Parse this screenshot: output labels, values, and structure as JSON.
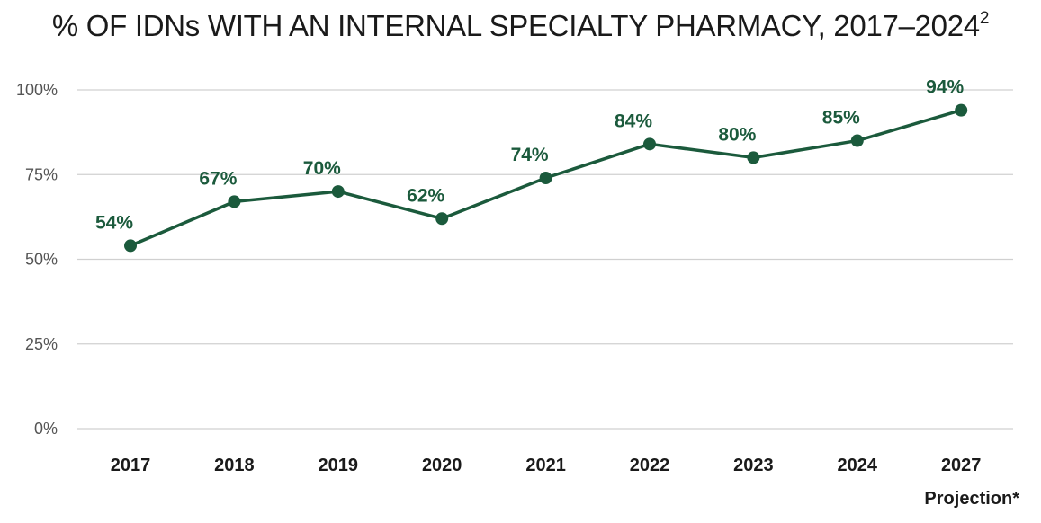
{
  "chart_data": {
    "type": "line",
    "title": "% OF IDNs WITH AN INTERNAL SPECIALTY PHARMACY, 2017–2024",
    "title_superscript": "2",
    "categories": [
      "2017",
      "2018",
      "2019",
      "2020",
      "2021",
      "2022",
      "2023",
      "2024",
      "2027"
    ],
    "series": [
      {
        "values": [
          54,
          67,
          70,
          62,
          74,
          84,
          80,
          85,
          94
        ],
        "labels": [
          "54%",
          "67%",
          "70%",
          "62%",
          "74%",
          "84%",
          "80%",
          "85%",
          "94%"
        ]
      }
    ],
    "y_ticks": [
      0,
      25,
      50,
      75,
      100
    ],
    "y_tick_labels": [
      "0%",
      "25%",
      "50%",
      "75%",
      "100%"
    ],
    "ylim": [
      0,
      100
    ],
    "grid": true,
    "annotation": "Projection*",
    "colors": {
      "line": "#1b5a3c",
      "marker": "#1b5a3c",
      "label": "#1b5a3c",
      "grid": "#d0d0d0"
    }
  }
}
